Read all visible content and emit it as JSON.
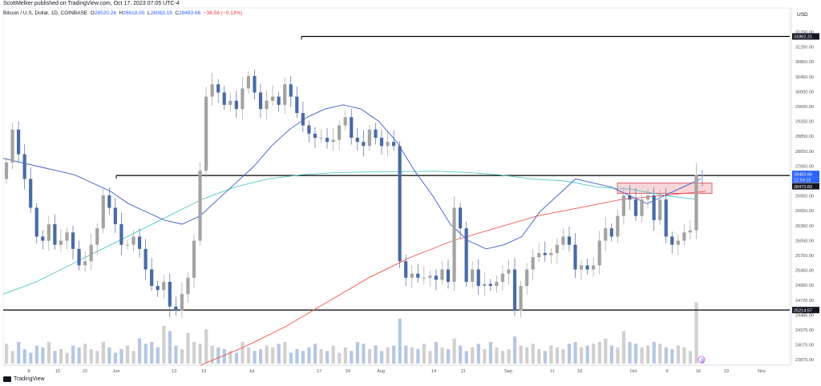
{
  "header": {
    "published": "ScottMelker published on TradingView.com, Oct 17, 2023 07:05 UTC-4",
    "symbol": "Bitcoin / U.S. Dollar, 1D, COINBASE",
    "o_label": "O",
    "o_value": "28520.24",
    "h_label": "H",
    "h_value": "28618.00",
    "l_label": "L",
    "l_value": "28063.19",
    "c_label": "C",
    "c_value": "28483.66",
    "change": "−36.58 (−0.13%)"
  },
  "currency_label": "USD",
  "footer": {
    "brand": "TradingView"
  },
  "colors": {
    "up_candle": "#a3a3a3",
    "down_candle": "#4a6aa5",
    "ma_blue": "#3b5fc4",
    "ma_teal": "#56c8c8",
    "ma_red": "#f0574f",
    "volume_up": "#c8c8c8",
    "volume_down": "#a9bde0",
    "hline": "#000000",
    "zone_border": "#e0636a",
    "zone_fill": "#f7d6d8"
  },
  "chart_data": {
    "type": "candlestick",
    "ylim": [
      23875,
      32300
    ],
    "y_ticks": [
      "31700.00",
      "31250.00",
      "30850.00",
      "30450.00",
      "30000.00",
      "29600.00",
      "29250.00",
      "28850.00",
      "28050.00",
      "27650.00",
      "27250.00",
      "26950.00",
      "26650.00",
      "26350.00",
      "26050.00",
      "25750.00",
      "25450.00",
      "24960.00",
      "24720.00",
      "24485.00",
      "24375.00",
      "24075.00",
      "23875.00"
    ],
    "x_ticks": [
      "8",
      "15",
      "22",
      "Jun",
      "13",
      "19",
      "Jul",
      "17",
      "24",
      "Aug",
      "14",
      "21",
      "Sep",
      "11",
      "18",
      "Oct",
      "9",
      "16",
      "23",
      "Nov"
    ],
    "price_labels": {
      "top_level": "31862.21",
      "current": "28483.66",
      "countdown": "12:54:15",
      "zone_level": "28473.83",
      "bottom_level": "25214.57"
    },
    "horizontal_levels": [
      31862.21,
      28483.66,
      25214.57
    ],
    "zone": [
      28050,
      28300
    ],
    "closes": [
      28800,
      29600,
      29000,
      28400,
      27700,
      27000,
      26900,
      27300,
      26800,
      26900,
      27100,
      26700,
      26300,
      26400,
      26800,
      27200,
      28000,
      27700,
      27300,
      26800,
      26800,
      27000,
      26700,
      26200,
      25800,
      25700,
      25900,
      25300,
      25200,
      25600,
      26000,
      26900,
      28600,
      30400,
      30700,
      30500,
      30200,
      30300,
      30100,
      30600,
      30900,
      30500,
      30100,
      30300,
      30400,
      30200,
      30700,
      30400,
      30000,
      29700,
      29500,
      29400,
      29400,
      29300,
      29350,
      29700,
      29900,
      29400,
      29300,
      29200,
      29600,
      29400,
      29200,
      29300,
      29200,
      26400,
      26000,
      26100,
      26000,
      26000,
      26050,
      25950,
      26200,
      25900,
      27700,
      27200,
      25900,
      26200,
      25800,
      25850,
      25800,
      25900,
      26100,
      26200,
      25200,
      25800,
      26200,
      26500,
      26600,
      26550,
      26600,
      26800,
      27000,
      26800,
      26200,
      26300,
      26200,
      26300,
      26900,
      27200,
      27000,
      27500,
      28000,
      27900,
      27500,
      27900,
      28000,
      27400,
      27900,
      27000,
      26800,
      26900,
      27100,
      27150,
      28500,
      28480
    ],
    "ma_blue": [
      28900,
      28800,
      28700,
      28600,
      28500,
      28300,
      28100,
      27800,
      27600,
      27400,
      27300,
      27500,
      27900,
      28300,
      28700,
      29200,
      29600,
      29900,
      30100,
      30200,
      30100,
      29800,
      29300,
      28600,
      28000,
      27300,
      26900,
      26700,
      26800,
      27000,
      27600,
      28000,
      28400,
      28300,
      28200,
      28000,
      27800,
      28000,
      28200,
      28400
    ],
    "ma_teal": [
      25600,
      25900,
      26300,
      26700,
      27100,
      27500,
      27900,
      28200,
      28400,
      28500,
      28550,
      28570,
      28580,
      28590,
      28560,
      28500,
      28400,
      28350,
      28200,
      28150,
      28000,
      27900
    ],
    "ma_red": [
      23875,
      24300,
      24800,
      25400,
      26000,
      26500,
      26900,
      27200,
      27500,
      27700,
      27900,
      28000,
      28100
    ],
    "volume": [
      0.55,
      0.35,
      0.6,
      0.4,
      0.3,
      0.5,
      0.45,
      0.6,
      0.35,
      0.4,
      0.3,
      0.5,
      0.45,
      0.55,
      0.4,
      0.35,
      0.6,
      0.45,
      0.3,
      0.4,
      0.5,
      0.35,
      0.7,
      0.55,
      0.6,
      0.45,
      1.05,
      0.9,
      0.5,
      0.4,
      0.85,
      0.6,
      0.55,
      0.95,
      0.5,
      0.45,
      0.4,
      0.35,
      0.3,
      0.6,
      0.45,
      0.35,
      0.4,
      0.5,
      0.45,
      0.55,
      0.6,
      0.3,
      0.4,
      0.35,
      0.45,
      0.55,
      0.4,
      0.35,
      0.5,
      0.3,
      0.45,
      0.35,
      0.6,
      0.55,
      0.4,
      0.5,
      0.35,
      0.45,
      0.5,
      1.25,
      0.5,
      0.45,
      0.4,
      0.55,
      0.35,
      0.6,
      0.45,
      0.4,
      0.7,
      0.5,
      0.35,
      0.45,
      0.55,
      0.4,
      0.6,
      0.45,
      0.35,
      0.4,
      0.75,
      0.5,
      0.45,
      0.55,
      0.4,
      0.35,
      0.5,
      0.45,
      0.4,
      0.55,
      0.6,
      0.45,
      0.5,
      0.55,
      0.6,
      0.7,
      0.5,
      0.45,
      0.9,
      0.6,
      0.55,
      0.45,
      0.5,
      0.6,
      0.55,
      0.45,
      0.4,
      0.5,
      0.45,
      0.35,
      1.7,
      0.15
    ]
  }
}
